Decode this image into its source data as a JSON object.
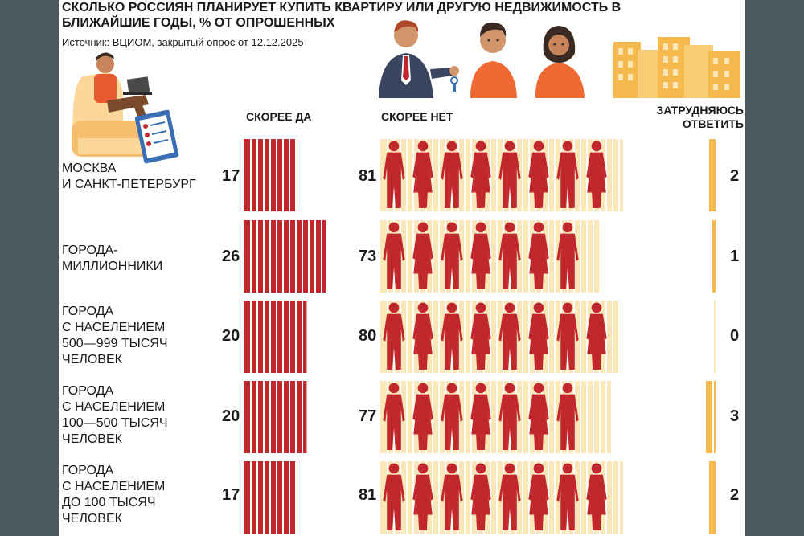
{
  "header": {
    "title": "Сколько россиян планирует купить квартиру или другую недвижимость в ближайшие годы, % от опрошенных",
    "source": "Источник: ВЦИОМ, закрытый опрос от 12.12.2025"
  },
  "columns": {
    "yes": "СКОРЕЕ ДА",
    "no": "СКОРЕЕ НЕТ",
    "unsure": "ЗАТРУДНЯЮСЬ ОТВЕТИТЬ"
  },
  "colors": {
    "yes": "#c0282e",
    "no": "#c0282e",
    "no_background": "#fde7b8",
    "unsure": "#f6b94e",
    "divider": "#ffffff",
    "page_background": "#4a5860"
  },
  "icons": [
    "man-with-laptop-illustration",
    "realtor-with-keys-illustration",
    "young-man-illustration",
    "young-woman-illustration",
    "buildings-illustration",
    "person-silhouette-icon"
  ],
  "chart_data": {
    "type": "bar",
    "title": "Сколько россиян планирует купить квартиру или другую недвижимость в ближайшие годы, % от опрошенных",
    "categories": [
      "Москва\nи Санкт-Петербург",
      "Города-\nмиллионники",
      "Города\nс населением\n500—999 тысяч\nчеловек",
      "Города\nс населением\n100—500 тысяч\nчеловек",
      "Города\nс населением\nдо 100 тысяч\nчеловек"
    ],
    "series": [
      {
        "name": "СКОРЕЕ ДА",
        "values": [
          17,
          26,
          20,
          20,
          17
        ]
      },
      {
        "name": "СКОРЕЕ НЕТ",
        "values": [
          81,
          73,
          80,
          77,
          81
        ]
      },
      {
        "name": "ЗАТРУДНЯЮСЬ ОТВЕТИТЬ",
        "values": [
          2,
          1,
          0,
          3,
          2
        ]
      }
    ],
    "xlabel": "",
    "ylabel": "",
    "unit": "%",
    "grid": false,
    "legend": "column headers above bars",
    "rows": [
      {
        "label": "Москва\nи Санкт-Петербург",
        "yes": 17,
        "no": 81,
        "unsure": 2,
        "yes_text": "17",
        "no_text": "81",
        "unsure_text": "2"
      },
      {
        "label": "Города-\nмиллионники",
        "yes": 26,
        "no": 73,
        "unsure": 1,
        "yes_text": "26",
        "no_text": "73",
        "unsure_text": "1"
      },
      {
        "label": "Города\nс населением\n500—999 тысяч\nчеловек",
        "yes": 20,
        "no": 80,
        "unsure": 0,
        "yes_text": "20",
        "no_text": "80",
        "unsure_text": "0"
      },
      {
        "label": "Города\nс населением\n100—500 тысяч\nчеловек",
        "yes": 20,
        "no": 77,
        "unsure": 3,
        "yes_text": "20",
        "no_text": "77",
        "unsure_text": "3"
      },
      {
        "label": "Города\nс населением\nдо 100 тысяч\nчеловек",
        "yes": 17,
        "no": 81,
        "unsure": 2,
        "yes_text": "17",
        "no_text": "81",
        "unsure_text": "2"
      }
    ]
  }
}
